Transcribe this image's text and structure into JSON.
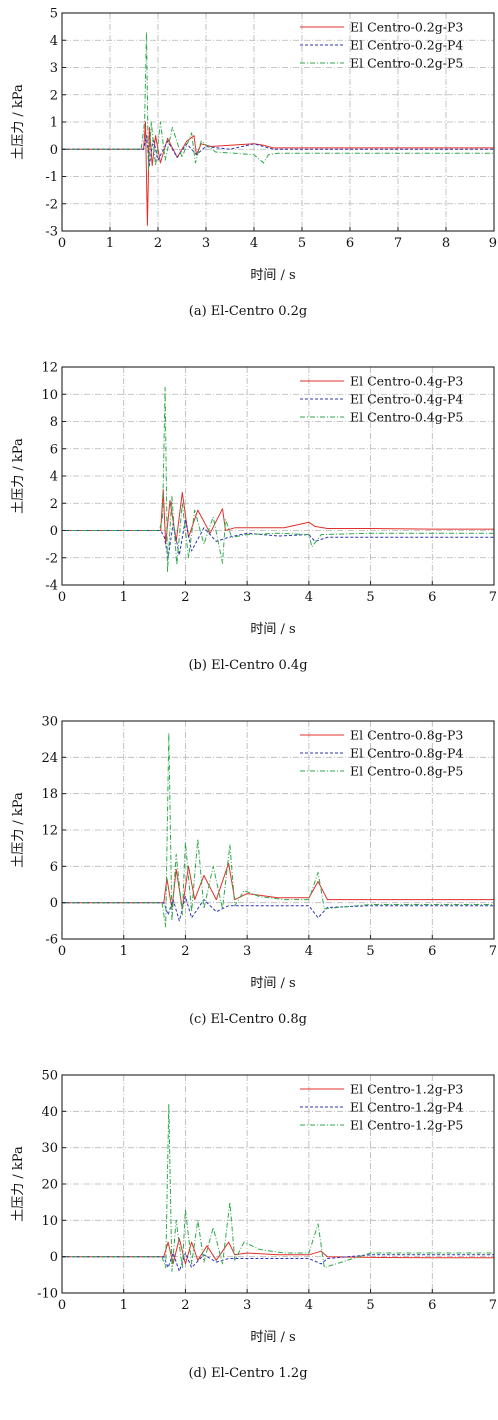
{
  "figure": {
    "colors": {
      "P3": "#e0302b",
      "P4": "#2a35b8",
      "P5": "#2ea84a",
      "grid": "#b5b5b5"
    }
  },
  "chart_data": [
    {
      "type": "line",
      "caption": "(a) El-Centro 0.2g",
      "xlabel": "时间 / s",
      "ylabel": "土压力 / kPa",
      "xlim": [
        0,
        9
      ],
      "ylim": [
        -3,
        5
      ],
      "xticks": [
        "0",
        "1",
        "2",
        "3",
        "4",
        "5",
        "6",
        "7",
        "8",
        "9"
      ],
      "yticks": [
        "-3",
        "-2",
        "-1",
        "0",
        "1",
        "2",
        "3",
        "4",
        "5"
      ],
      "grid": true,
      "legend_position": "top-right",
      "series": [
        {
          "name": "El Centro-0.2g-P3",
          "color": "#e0302b",
          "dash": "solid",
          "x": [
            0,
            1.7,
            1.74,
            1.78,
            1.82,
            1.88,
            1.95,
            2.05,
            2.2,
            2.4,
            2.6,
            2.75,
            2.8,
            2.9,
            3.1,
            3.5,
            4.0,
            4.2,
            4.4,
            5,
            6,
            7,
            8,
            9
          ],
          "y": [
            0,
            0,
            1.0,
            -2.8,
            0.8,
            -0.6,
            0.5,
            -0.5,
            0.4,
            -0.3,
            0.3,
            0.5,
            -0.2,
            0.2,
            0.1,
            0.15,
            0.2,
            0.15,
            0.05,
            0.05,
            0.05,
            0.05,
            0.05,
            0.05
          ]
        },
        {
          "name": "El Centro-0.2g-P4",
          "color": "#2a35b8",
          "dash": "dashed",
          "x": [
            0,
            1.7,
            1.76,
            1.82,
            1.9,
            2.0,
            2.2,
            2.4,
            2.6,
            2.8,
            3.0,
            3.5,
            4.0,
            4.2,
            4.4,
            5,
            6,
            7,
            8,
            9
          ],
          "y": [
            0,
            0,
            0.5,
            -0.6,
            0.4,
            -0.4,
            0.3,
            -0.3,
            0.2,
            -0.2,
            0.1,
            0.0,
            0.2,
            0.1,
            0.0,
            0.0,
            0.0,
            0.0,
            0.0,
            0.0
          ]
        },
        {
          "name": "El Centro-0.2g-P5",
          "color": "#2ea84a",
          "dash": "dashdot",
          "x": [
            0,
            1.65,
            1.72,
            1.76,
            1.8,
            1.86,
            1.95,
            2.05,
            2.15,
            2.3,
            2.5,
            2.7,
            2.78,
            2.9,
            3.2,
            3.6,
            4.0,
            4.2,
            4.3,
            4.5,
            5,
            6,
            7,
            8,
            9
          ],
          "y": [
            0,
            0,
            1.0,
            4.3,
            -0.8,
            1.0,
            -0.6,
            1.0,
            -0.4,
            0.8,
            -0.3,
            0.6,
            -0.5,
            0.3,
            -0.1,
            -0.15,
            -0.2,
            -0.5,
            -0.2,
            -0.15,
            -0.15,
            -0.15,
            -0.15,
            -0.15,
            -0.15
          ]
        }
      ]
    },
    {
      "type": "line",
      "caption": "(b) El-Centro 0.4g",
      "xlabel": "时间 / s",
      "ylabel": "土压力 / kPa",
      "xlim": [
        0,
        7
      ],
      "ylim": [
        -4,
        12
      ],
      "xticks": [
        "0",
        "1",
        "2",
        "3",
        "4",
        "5",
        "6",
        "7"
      ],
      "yticks": [
        "-4",
        "-2",
        "0",
        "2",
        "4",
        "6",
        "8",
        "10",
        "12"
      ],
      "grid": true,
      "legend_position": "top-right",
      "series": [
        {
          "name": "El Centro-0.4g-P3",
          "color": "#e0302b",
          "dash": "solid",
          "x": [
            0,
            1.6,
            1.64,
            1.68,
            1.75,
            1.85,
            1.95,
            2.05,
            2.2,
            2.4,
            2.6,
            2.65,
            2.8,
            3.2,
            3.6,
            4.0,
            4.1,
            4.3,
            5,
            6,
            7
          ],
          "y": [
            0,
            0,
            3.0,
            -1.0,
            2.2,
            -0.8,
            2.8,
            -0.5,
            1.5,
            -0.2,
            1.6,
            0.0,
            0.2,
            0.2,
            0.2,
            0.6,
            0.3,
            0.15,
            0.15,
            0.1,
            0.1
          ]
        },
        {
          "name": "El Centro-0.4g-P4",
          "color": "#2a35b8",
          "dash": "dashed",
          "x": [
            0,
            1.6,
            1.66,
            1.72,
            1.8,
            1.9,
            2.0,
            2.1,
            2.3,
            2.5,
            2.7,
            3.0,
            3.5,
            4.0,
            4.1,
            4.3,
            5,
            6,
            7
          ],
          "y": [
            0,
            0,
            -0.5,
            -2.0,
            0.5,
            -1.8,
            0.8,
            -1.5,
            0.2,
            -0.8,
            -0.5,
            -0.2,
            -0.4,
            -0.3,
            -0.8,
            -0.5,
            -0.5,
            -0.5,
            -0.5
          ]
        },
        {
          "name": "El Centro-0.4g-P5",
          "color": "#2ea84a",
          "dash": "dashdot",
          "x": [
            0,
            1.58,
            1.63,
            1.67,
            1.71,
            1.78,
            1.86,
            1.95,
            2.05,
            2.15,
            2.3,
            2.45,
            2.6,
            2.65,
            2.75,
            3.0,
            3.5,
            4.0,
            4.05,
            4.2,
            5,
            6,
            7
          ],
          "y": [
            0,
            0,
            1.0,
            10.5,
            -3.0,
            2.5,
            -2.5,
            2.0,
            -2.0,
            1.5,
            -1.0,
            1.0,
            -2.4,
            0.8,
            -0.5,
            -0.3,
            -0.2,
            -0.3,
            -1.2,
            -0.3,
            -0.2,
            -0.2,
            -0.2
          ]
        }
      ]
    },
    {
      "type": "line",
      "caption": "(c) El-Centro 0.8g",
      "xlabel": "时间 / s",
      "ylabel": "土压力 / kPa",
      "xlim": [
        0,
        7
      ],
      "ylim": [
        -6,
        30
      ],
      "xticks": [
        "0",
        "1",
        "2",
        "3",
        "4",
        "5",
        "6",
        "7"
      ],
      "yticks": [
        "-6",
        "0",
        "6",
        "12",
        "18",
        "24",
        "30"
      ],
      "grid": true,
      "legend_position": "top-right",
      "series": [
        {
          "name": "El Centro-0.8g-P3",
          "color": "#e0302b",
          "dash": "solid",
          "x": [
            0,
            1.65,
            1.7,
            1.78,
            1.85,
            1.95,
            2.05,
            2.15,
            2.3,
            2.5,
            2.7,
            2.8,
            3.0,
            3.5,
            4.0,
            4.15,
            4.3,
            5,
            6,
            7
          ],
          "y": [
            0,
            0,
            4.0,
            -1.0,
            5.5,
            -1.0,
            6.0,
            0.5,
            4.5,
            0.5,
            6.5,
            0.5,
            1.5,
            0.8,
            0.8,
            3.5,
            0.5,
            0.5,
            0.5,
            0.5
          ]
        },
        {
          "name": "El Centro-0.8g-P4",
          "color": "#2a35b8",
          "dash": "dashed",
          "x": [
            0,
            1.65,
            1.72,
            1.8,
            1.9,
            2.0,
            2.1,
            2.3,
            2.5,
            2.7,
            3.0,
            3.5,
            4.0,
            4.15,
            4.3,
            5,
            6,
            7
          ],
          "y": [
            0,
            0,
            -2.0,
            0.5,
            -3.0,
            1.0,
            -2.5,
            0.5,
            -1.5,
            -0.5,
            -0.5,
            -0.5,
            -0.5,
            -2.5,
            -0.8,
            -0.5,
            -0.5,
            -0.5
          ]
        },
        {
          "name": "El Centro-0.8g-P5",
          "color": "#2ea84a",
          "dash": "dashdot",
          "x": [
            0,
            1.62,
            1.68,
            1.73,
            1.78,
            1.85,
            1.95,
            2.0,
            2.1,
            2.2,
            2.3,
            2.45,
            2.6,
            2.72,
            2.8,
            2.95,
            3.2,
            3.6,
            4.0,
            4.15,
            4.25,
            5,
            6,
            7
          ],
          "y": [
            0,
            0,
            -4.0,
            28.0,
            -3.0,
            8.0,
            -2.0,
            10.0,
            -1.5,
            10.5,
            -1.0,
            6.0,
            -1.0,
            9.5,
            -0.5,
            2.0,
            1.0,
            0.5,
            0.5,
            5.0,
            -1.0,
            -0.3,
            -0.3,
            -0.3
          ]
        }
      ]
    },
    {
      "type": "line",
      "caption": "(d) El-Centro 1.2g",
      "xlabel": "时间 / s",
      "ylabel": "土压力 / kPa",
      "xlim": [
        0,
        7
      ],
      "ylim": [
        -10,
        50
      ],
      "xticks": [
        "0",
        "1",
        "2",
        "3",
        "4",
        "5",
        "6",
        "7"
      ],
      "yticks": [
        "-10",
        "0",
        "10",
        "20",
        "30",
        "40",
        "50"
      ],
      "grid": true,
      "legend_position": "top-right",
      "series": [
        {
          "name": "El Centro-1.2g-P3",
          "color": "#e0302b",
          "dash": "solid",
          "x": [
            0,
            1.65,
            1.72,
            1.8,
            1.9,
            2.0,
            2.1,
            2.2,
            2.35,
            2.5,
            2.7,
            2.8,
            3.0,
            3.5,
            4.0,
            4.2,
            4.3,
            5,
            6,
            7
          ],
          "y": [
            0,
            0,
            4.0,
            -2.0,
            5.0,
            -2.0,
            4.0,
            -1.0,
            3.0,
            -1.0,
            4.0,
            0.5,
            1.0,
            0.5,
            0.5,
            1.5,
            0.0,
            -0.2,
            -0.3,
            -0.3
          ]
        },
        {
          "name": "El Centro-1.2g-P4",
          "color": "#2a35b8",
          "dash": "dashed",
          "x": [
            0,
            1.65,
            1.72,
            1.8,
            1.9,
            2.0,
            2.1,
            2.3,
            2.5,
            2.7,
            3.0,
            3.5,
            4.0,
            4.2,
            4.3,
            5,
            6,
            7
          ],
          "y": [
            0,
            0,
            -3.0,
            1.0,
            -4.0,
            1.0,
            -3.0,
            0.5,
            -1.5,
            -0.5,
            -0.5,
            -0.5,
            -0.5,
            -2.0,
            -0.5,
            0.5,
            0.5,
            0.5
          ]
        },
        {
          "name": "El Centro-1.2g-P5",
          "color": "#2ea84a",
          "dash": "dashdot",
          "x": [
            0,
            1.62,
            1.68,
            1.73,
            1.78,
            1.85,
            1.95,
            2.0,
            2.1,
            2.2,
            2.3,
            2.45,
            2.6,
            2.72,
            2.8,
            2.95,
            3.2,
            3.6,
            4.0,
            4.15,
            4.25,
            5,
            6,
            7
          ],
          "y": [
            0,
            0,
            -3.0,
            42.0,
            -4.0,
            10.0,
            -3.0,
            13.0,
            -2.0,
            10.0,
            -1.5,
            8.0,
            -2.0,
            15.0,
            -1.0,
            4.0,
            2.0,
            1.0,
            1.0,
            9.0,
            -3.0,
            1.0,
            1.0,
            1.0
          ]
        }
      ]
    }
  ]
}
